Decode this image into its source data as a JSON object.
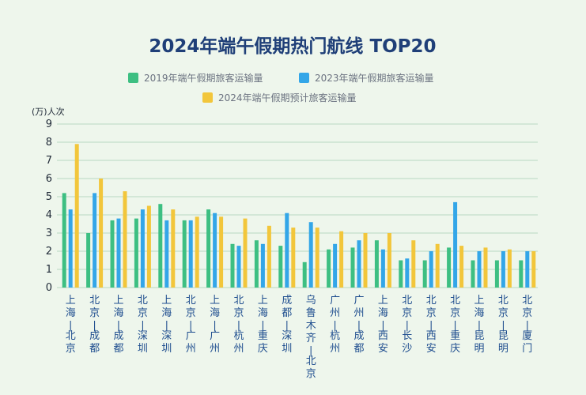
{
  "chart_data": {
    "type": "bar",
    "title": "2024年端午假期热门航线 TOP20",
    "ylabel": "(万)人次",
    "ylim": [
      0,
      9
    ],
    "yticks": [
      0,
      1,
      2,
      3,
      4,
      5,
      6,
      7,
      8,
      9
    ],
    "grid": true,
    "legend_position": "top",
    "categories": [
      "上海-北京",
      "北京-成都",
      "上海-成都",
      "北京-深圳",
      "上海-深圳",
      "北京-广州",
      "上海-广州",
      "北京-杭州",
      "上海-重庆",
      "成都-深圳",
      "乌鲁木齐-北京",
      "广州-杭州",
      "广州-成都",
      "上海-西安",
      "北京-长沙",
      "北京-西安",
      "北京-重庆",
      "上海-昆明",
      "北京-昆明",
      "北京-厦门"
    ],
    "series": [
      {
        "name": "2019年端午假期旅客运输量",
        "color": "#3dbf82",
        "values": [
          5.2,
          3.0,
          3.7,
          3.8,
          4.6,
          3.7,
          4.3,
          2.4,
          2.6,
          2.3,
          1.4,
          2.1,
          2.2,
          2.6,
          1.5,
          1.5,
          2.2,
          1.5,
          1.5,
          1.5
        ]
      },
      {
        "name": "2023年端午假期旅客运输量",
        "color": "#33a6e8",
        "values": [
          4.3,
          5.2,
          3.8,
          4.3,
          3.7,
          3.7,
          4.1,
          2.3,
          2.4,
          4.1,
          3.6,
          2.4,
          2.6,
          2.1,
          1.6,
          2.0,
          4.7,
          2.0,
          2.0,
          2.0
        ]
      },
      {
        "name": "2024年端午假期预计旅客运输量",
        "color": "#f2c63b",
        "values": [
          7.9,
          6.0,
          5.3,
          4.5,
          4.3,
          3.9,
          3.9,
          3.8,
          3.4,
          3.3,
          3.3,
          3.1,
          3.0,
          3.0,
          2.6,
          2.4,
          2.3,
          2.2,
          2.1,
          2.0
        ]
      }
    ]
  }
}
